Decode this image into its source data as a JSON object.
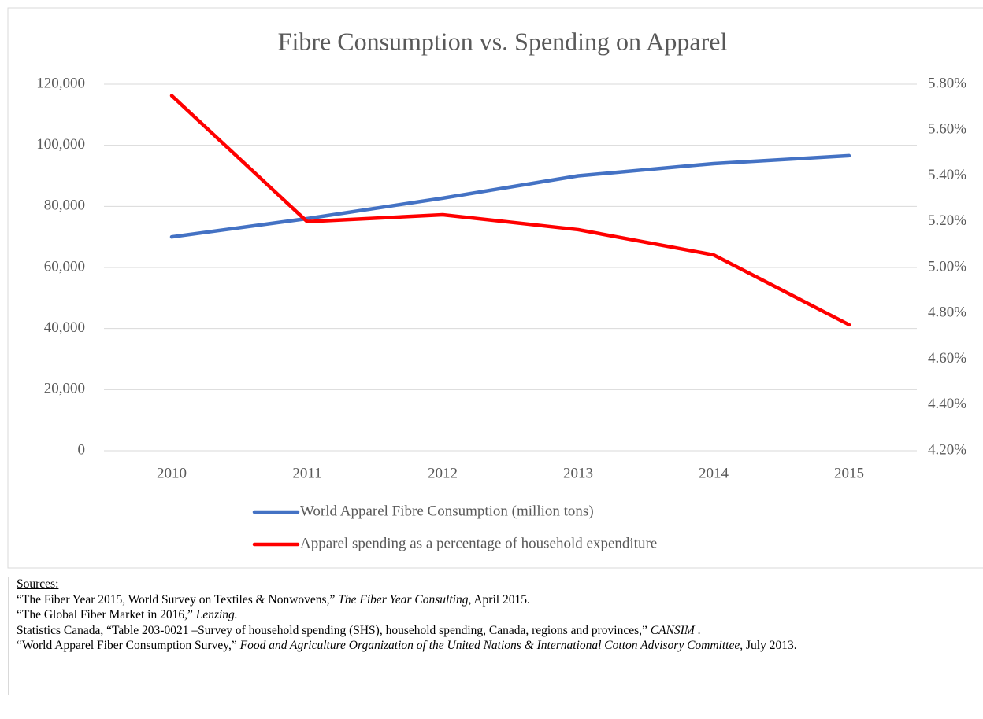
{
  "chart_data": {
    "type": "line",
    "title": "Fibre Consumption vs. Spending on Apparel",
    "categories": [
      "2010",
      "2011",
      "2012",
      "2013",
      "2014",
      "2015"
    ],
    "series": [
      {
        "name": "World Apparel Fibre Consumption (million tons)",
        "color": "#4472c4",
        "values": [
          70000,
          76000,
          82700,
          90000,
          94000,
          96600
        ]
      },
      {
        "name": "Apparel spending as a percentage of household expenditure",
        "color": "#ff0000",
        "axis": "y2",
        "values": [
          5.75,
          5.2,
          5.23,
          5.165,
          5.055,
          4.75
        ]
      }
    ],
    "ylim": [
      0,
      120000
    ],
    "yticks": [
      0,
      {
        "value": 20000,
        "label": "20,000"
      },
      {
        "value": 40000,
        "label": "40,000"
      },
      {
        "value": 60000,
        "label": "60,000"
      },
      {
        "value": 80000,
        "label": "80,000"
      },
      {
        "value": 100000,
        "label": "100,000"
      },
      {
        "value": 120000,
        "label": "120,000"
      }
    ],
    "y2lim": [
      4.2,
      5.8
    ],
    "y2ticks": [
      {
        "value": 4.2,
        "label": "4.20%"
      },
      {
        "value": 4.4,
        "label": "4.40%"
      },
      {
        "value": 4.6,
        "label": "4.60%"
      },
      {
        "value": 4.8,
        "label": "4.80%"
      },
      {
        "value": 5.0,
        "label": "5.00%"
      },
      {
        "value": 5.2,
        "label": "5.20%"
      },
      {
        "value": 5.4,
        "label": "5.40%"
      },
      {
        "value": 5.6,
        "label": "5.60%"
      },
      {
        "value": 5.8,
        "label": "5.80%"
      }
    ],
    "grid": true,
    "legend": "bottom"
  },
  "sources": {
    "heading": "Sources:",
    "items": [
      {
        "before": "“The Fiber Year 2015, World Survey on Textiles & Nonwovens,” ",
        "italic": "The Fiber Year Consulting,",
        "after": " April 2015."
      },
      {
        "before": "“The Global Fiber Market in 2016,” ",
        "italic": "Lenzing."
      },
      {
        "before": "Statistics Canada, “Table 203-0021 –Survey of household spending (SHS), household spending, Canada, regions and provinces,” ",
        "italic": "CANSIM",
        "after": " ."
      },
      {
        "before": "“World Apparel Fiber Consumption Survey,” ",
        "italic": "Food and Agriculture Organization of the United Nations & International Cotton Advisory Committee",
        "after": ", July 2013."
      }
    ]
  }
}
